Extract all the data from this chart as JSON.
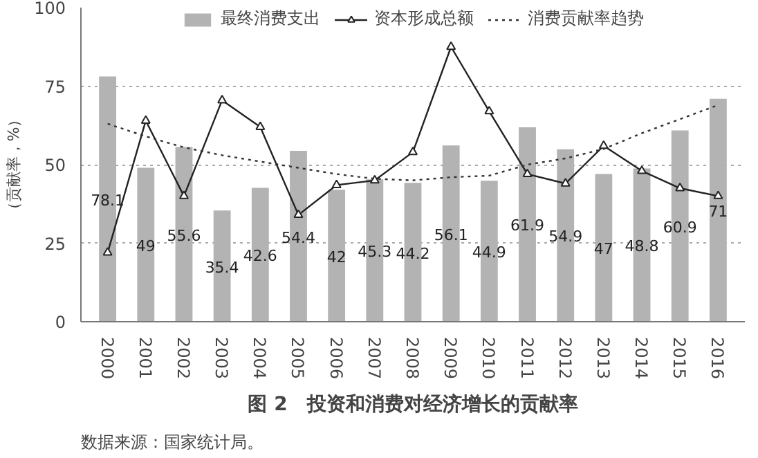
{
  "chart_data": {
    "type": "bar",
    "title": "图 2　投资和消费对经济增长的贡献率",
    "ylabel": "（贡献率，%）",
    "annotations": [
      "数据来源：国家统计局。"
    ],
    "categories": [
      "2000",
      "2001",
      "2002",
      "2003",
      "2004",
      "2005",
      "2006",
      "2007",
      "2008",
      "2009",
      "2010",
      "2011",
      "2012",
      "2013",
      "2014",
      "2015",
      "2016"
    ],
    "series": [
      {
        "name": "最终消费支出",
        "color": "#b3b3b3",
        "values": [
          78.1,
          49,
          55.6,
          35.4,
          42.6,
          54.4,
          42,
          45.3,
          44.2,
          56.1,
          44.9,
          61.9,
          54.9,
          47,
          48.8,
          60.9,
          71
        ],
        "value_labels": [
          "78.1",
          "49",
          "55.6",
          "35.4",
          "42.6",
          "54.4",
          "42",
          "45.3",
          "44.2",
          "56.1",
          "44.9",
          "61.9",
          "54.9",
          "47",
          "48.8",
          "60.9",
          "71"
        ]
      },
      {
        "name": "资本形成总额",
        "type": "line",
        "color": "#222222",
        "marker": "triangle",
        "line_style": "solid",
        "values": [
          22,
          64,
          40,
          70.5,
          62,
          34,
          43.5,
          45,
          54,
          87.5,
          67,
          47,
          44,
          56,
          48,
          42.5,
          40
        ]
      },
      {
        "name": "消费贡献率趋势",
        "type": "line",
        "color": "#333333",
        "marker": "none",
        "line_style": "dotted",
        "values": [
          63,
          59,
          55.5,
          53,
          51,
          49,
          47,
          45.5,
          45,
          46,
          46.5,
          50,
          52,
          55,
          60,
          64.5,
          69
        ]
      }
    ],
    "ylim": [
      0,
      100
    ],
    "yticks": [
      0,
      25,
      50,
      75,
      100
    ],
    "grid": "y",
    "legend": "top"
  }
}
